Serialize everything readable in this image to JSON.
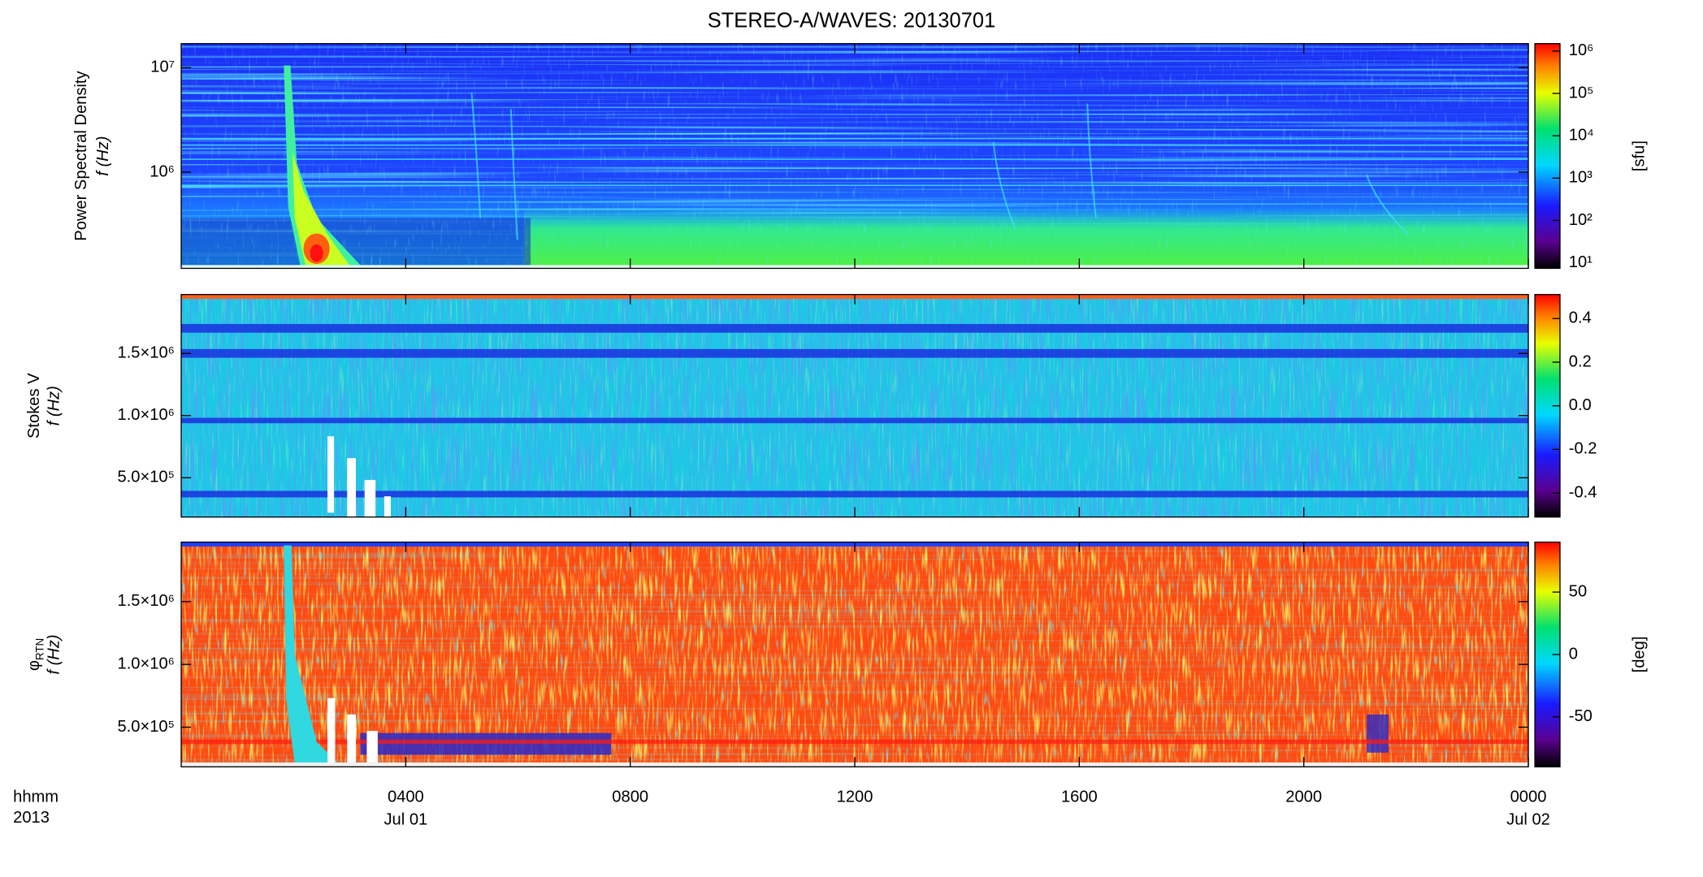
{
  "chart_data": [
    {
      "type": "heatmap",
      "title": "STEREO-A/WAVES: 20130701",
      "quantity": "Power Spectral Density",
      "ylabel": "f (Hz)",
      "yscale": "log",
      "ylim": [
        120000,
        17000000
      ],
      "yticks": [
        {
          "value": 1000000,
          "label": "10⁶"
        },
        {
          "value": 10000000,
          "label": "10⁷"
        }
      ],
      "xlim": [
        0,
        24
      ],
      "zscale": "log",
      "zlim": [
        7.4,
        1500000
      ],
      "zlabel": "[sfu]",
      "zticks": [
        {
          "value": 10,
          "label": "10¹"
        },
        {
          "value": 100,
          "label": "10²"
        },
        {
          "value": 1000,
          "label": "10³"
        },
        {
          "value": 10000,
          "label": "10⁴"
        },
        {
          "value": 100000,
          "label": "10⁵"
        },
        {
          "value": 1000000,
          "label": "10⁶"
        }
      ]
    },
    {
      "type": "heatmap",
      "quantity": "Stokes V",
      "ylabel": "f (Hz)",
      "yscale": "linear",
      "ylim": [
        184000,
        1974000
      ],
      "yticks": [
        {
          "value": 500000,
          "label": "5.0×10⁵"
        },
        {
          "value": 1000000,
          "label": "1.0×10⁶"
        },
        {
          "value": 1500000,
          "label": "1.5×10⁶"
        }
      ],
      "xlim": [
        0,
        24
      ],
      "zscale": "linear",
      "zlim": [
        -0.51,
        0.51
      ],
      "zticks": [
        -0.4,
        -0.2,
        {
          "value": 0,
          "label": "0.0"
        },
        0.2,
        0.4
      ]
    },
    {
      "type": "heatmap",
      "quantity": "φ",
      "quantity_subscript": "RTN",
      "ylabel": "f (Hz)",
      "yscale": "linear",
      "ylim": [
        184000,
        1974000
      ],
      "yticks": [
        {
          "value": 500000,
          "label": "5.0×10⁵"
        },
        {
          "value": 1000000,
          "label": "1.0×10⁶"
        },
        {
          "value": 1500000,
          "label": "1.5×10⁶"
        }
      ],
      "xlim": [
        0,
        24
      ],
      "xlabel": "hhmm",
      "xlabel2": "2013",
      "xticks": [
        {
          "value": 4,
          "label": "0400"
        },
        {
          "value": 8,
          "label": "0800"
        },
        {
          "value": 12,
          "label": "1200"
        },
        {
          "value": 16,
          "label": "1600"
        },
        {
          "value": 20,
          "label": "2000"
        },
        {
          "value": 24,
          "label": "0000"
        }
      ],
      "xticks2": [
        {
          "value": 4,
          "label": "Jul 01"
        },
        {
          "value": 24,
          "label": "Jul 02"
        }
      ],
      "zscale": "linear",
      "zlim": [
        -90,
        90
      ],
      "zlabel": "[deg]",
      "zticks": [
        -50,
        0,
        50
      ]
    }
  ]
}
